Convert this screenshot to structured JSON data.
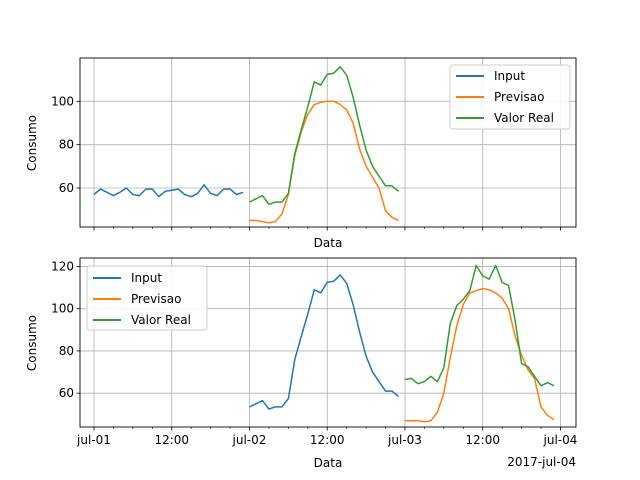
{
  "chart_data": [
    {
      "type": "line",
      "xlabel": "Data",
      "ylabel": "Consumo",
      "xlim": [
        -0.09,
        3.1
      ],
      "ylim": [
        42,
        120
      ],
      "yticks": [
        60,
        80,
        100
      ],
      "legend": "top-right",
      "grid": true,
      "series": [
        {
          "name": "Input",
          "color": "#1f77b4",
          "x": [
            0,
            0.0417,
            0.0833,
            0.125,
            0.1667,
            0.2083,
            0.25,
            0.2917,
            0.3333,
            0.375,
            0.4167,
            0.4583,
            0.5,
            0.5417,
            0.5833,
            0.625,
            0.6667,
            0.7083,
            0.75,
            0.7917,
            0.8333,
            0.875,
            0.9167,
            0.9583
          ],
          "y": [
            57,
            59.5,
            58,
            56.5,
            58,
            60,
            57,
            56.5,
            59.5,
            59.5,
            56,
            58.5,
            59,
            59.5,
            57,
            56,
            57.5,
            61.5,
            57.5,
            56.5,
            59.5,
            59.5,
            57,
            58
          ]
        },
        {
          "name": "Previsao",
          "color": "#ff7f0e",
          "x": [
            1,
            1.0417,
            1.0833,
            1.125,
            1.1667,
            1.2083,
            1.25,
            1.2917,
            1.3333,
            1.375,
            1.4167,
            1.4583,
            1.5,
            1.5417,
            1.5833,
            1.625,
            1.6667,
            1.7083,
            1.75,
            1.7917,
            1.8333,
            1.875,
            1.9167,
            1.9583
          ],
          "y": [
            45,
            45,
            44.5,
            44,
            44.5,
            48,
            57,
            75,
            86,
            94,
            98.5,
            99.5,
            100,
            100,
            98.5,
            96,
            90,
            78,
            70,
            65,
            60,
            49.5,
            46.5,
            45
          ]
        },
        {
          "name": "Valor Real",
          "color": "#2ca02c",
          "x": [
            1,
            1.0417,
            1.0833,
            1.125,
            1.1667,
            1.2083,
            1.25,
            1.2917,
            1.3333,
            1.375,
            1.4167,
            1.4583,
            1.5,
            1.5417,
            1.5833,
            1.625,
            1.6667,
            1.7083,
            1.75,
            1.7917,
            1.8333,
            1.875,
            1.9167,
            1.9583
          ],
          "y": [
            53.5,
            55,
            56.5,
            52.5,
            53.5,
            53.5,
            57.5,
            76,
            87,
            97.5,
            109,
            107.5,
            112.5,
            113,
            116,
            112,
            102,
            89,
            77.5,
            70,
            65.5,
            61,
            61,
            58.5
          ]
        }
      ]
    },
    {
      "type": "line",
      "xlabel": "Data",
      "ylabel": "Consumo",
      "xlim": [
        -0.09,
        3.1
      ],
      "ylim": [
        44,
        124
      ],
      "yticks": [
        60,
        80,
        100,
        120
      ],
      "xtick_labels": [
        "jul-01",
        "12:00",
        "jul-02",
        "12:00",
        "jul-03",
        "12:00",
        "jul-04"
      ],
      "offset_label": "2017-jul-04",
      "legend": "top-left",
      "grid": true,
      "series": [
        {
          "name": "Input",
          "color": "#1f77b4",
          "x": [
            1,
            1.0417,
            1.0833,
            1.125,
            1.1667,
            1.2083,
            1.25,
            1.2917,
            1.3333,
            1.375,
            1.4167,
            1.4583,
            1.5,
            1.5417,
            1.5833,
            1.625,
            1.6667,
            1.7083,
            1.75,
            1.7917,
            1.8333,
            1.875,
            1.9167,
            1.9583
          ],
          "y": [
            53.5,
            55,
            56.5,
            52.5,
            53.5,
            53.5,
            57.5,
            76,
            87,
            97.5,
            109,
            107.5,
            112.5,
            113,
            116,
            112,
            102,
            89,
            77.5,
            70,
            65.5,
            61,
            61,
            58.5
          ]
        },
        {
          "name": "Previsao",
          "color": "#ff7f0e",
          "x": [
            2,
            2.0417,
            2.0833,
            2.125,
            2.1667,
            2.2083,
            2.25,
            2.2917,
            2.3333,
            2.375,
            2.4167,
            2.4583,
            2.5,
            2.5417,
            2.5833,
            2.625,
            2.6667,
            2.7083,
            2.75,
            2.7917,
            2.8333,
            2.875,
            2.9167,
            2.9583
          ],
          "y": [
            47,
            47,
            47,
            46.5,
            47,
            51,
            60,
            77,
            92,
            102,
            107.5,
            108.5,
            109.5,
            109,
            107.5,
            105,
            100,
            87,
            78,
            71,
            67,
            53.5,
            49.5,
            47.5
          ]
        },
        {
          "name": "Valor Real",
          "color": "#2ca02c",
          "x": [
            2,
            2.0417,
            2.0833,
            2.125,
            2.1667,
            2.2083,
            2.25,
            2.2917,
            2.3333,
            2.375,
            2.4167,
            2.4583,
            2.5,
            2.5417,
            2.5833,
            2.625,
            2.6667,
            2.7083,
            2.75,
            2.7917,
            2.8333,
            2.875,
            2.9167,
            2.9583
          ],
          "y": [
            66.5,
            67,
            64.5,
            65.5,
            68,
            65.5,
            72,
            93,
            101.5,
            104.5,
            108.5,
            120.5,
            115.5,
            114,
            120.5,
            112.5,
            111,
            94.5,
            74,
            72.5,
            68,
            63.5,
            65,
            63.5
          ]
        }
      ]
    }
  ]
}
